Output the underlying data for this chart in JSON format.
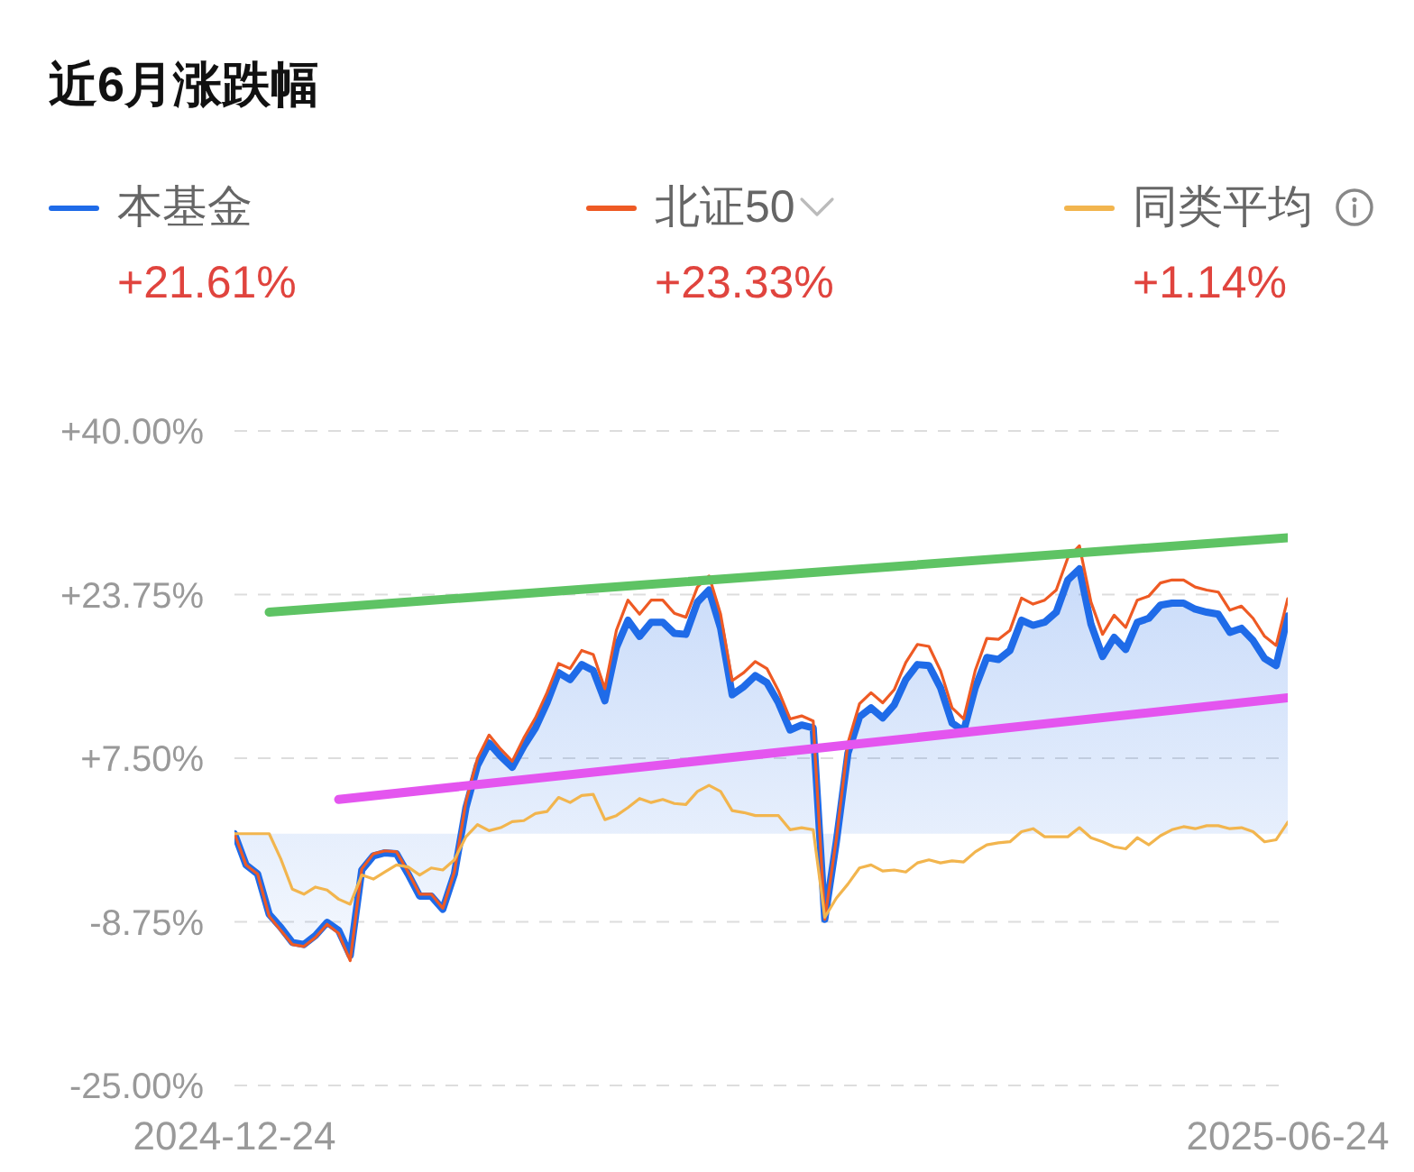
{
  "chart_data": {
    "type": "line",
    "title": "近6月涨跌幅",
    "x": [
      "2024-12-24",
      "2024-12-26",
      "2024-12-28",
      "2024-12-30",
      "2025-01-01",
      "2025-01-03",
      "2025-01-05",
      "2025-01-07",
      "2025-01-09",
      "2025-01-11",
      "2025-01-13",
      "2025-01-15",
      "2025-01-17",
      "2025-01-19",
      "2025-01-21",
      "2025-01-23",
      "2025-01-25",
      "2025-01-27",
      "2025-01-29",
      "2025-01-31",
      "2025-02-02",
      "2025-02-04",
      "2025-02-06",
      "2025-02-08",
      "2025-02-10",
      "2025-02-12",
      "2025-02-14",
      "2025-02-16",
      "2025-02-18",
      "2025-02-20",
      "2025-02-22",
      "2025-02-24",
      "2025-02-26",
      "2025-02-28",
      "2025-03-02",
      "2025-03-04",
      "2025-03-06",
      "2025-03-08",
      "2025-03-10",
      "2025-03-12",
      "2025-03-14",
      "2025-03-16",
      "2025-03-18",
      "2025-03-20",
      "2025-03-22",
      "2025-03-24",
      "2025-03-26",
      "2025-03-28",
      "2025-03-30",
      "2025-04-01",
      "2025-04-03",
      "2025-04-05",
      "2025-04-07",
      "2025-04-09",
      "2025-04-11",
      "2025-04-13",
      "2025-04-15",
      "2025-04-17",
      "2025-04-19",
      "2025-04-21",
      "2025-04-23",
      "2025-04-25",
      "2025-04-27",
      "2025-04-29",
      "2025-05-01",
      "2025-05-03",
      "2025-05-05",
      "2025-05-07",
      "2025-05-09",
      "2025-05-11",
      "2025-05-13",
      "2025-05-15",
      "2025-05-17",
      "2025-05-19",
      "2025-05-21",
      "2025-05-23",
      "2025-05-25",
      "2025-05-27",
      "2025-05-29",
      "2025-05-31",
      "2025-06-02",
      "2025-06-04",
      "2025-06-06",
      "2025-06-08",
      "2025-06-10",
      "2025-06-12",
      "2025-06-14",
      "2025-06-16",
      "2025-06-18",
      "2025-06-20",
      "2025-06-22",
      "2025-06-24"
    ],
    "xlim": [
      "2024-12-24",
      "2025-06-24"
    ],
    "xticks": [
      "2024-12-24",
      "2025-06-24"
    ],
    "ylim": [
      -25,
      40
    ],
    "yticks": [
      {
        "value": 40,
        "label": "+40.00%"
      },
      {
        "value": 23.75,
        "label": "+23.75%"
      },
      {
        "value": 7.5,
        "label": "+7.50%"
      },
      {
        "value": -8.75,
        "label": "-8.75%"
      },
      {
        "value": -25,
        "label": "-25.00%"
      }
    ],
    "grid": "y",
    "legend": "top",
    "marker": "none",
    "line_style": "solid",
    "annotations": [
      "+21.61%",
      "+23.33%",
      "+1.14%"
    ],
    "series": [
      {
        "name": "本基金",
        "type": "area",
        "color": "#1f6be8",
        "values": [
          0,
          -3.1,
          -4.0,
          -8.0,
          -9.3,
          -10.8,
          -11.0,
          -10.1,
          -8.8,
          -9.6,
          -12.1,
          -3.6,
          -2.2,
          -1.9,
          -2.0,
          -4.0,
          -6.2,
          -6.2,
          -7.5,
          -4.0,
          2.6,
          6.8,
          9.0,
          7.7,
          6.6,
          8.7,
          10.5,
          13.0,
          16.0,
          15.3,
          16.8,
          16.2,
          13.2,
          18.5,
          21.2,
          19.6,
          21.0,
          21.0,
          19.9,
          19.8,
          23.0,
          24.2,
          20.4,
          13.8,
          14.6,
          15.7,
          15.0,
          13.0,
          10.3,
          10.8,
          10.5,
          -8.5,
          -0.8,
          8.0,
          11.6,
          12.5,
          11.5,
          12.8,
          15.3,
          16.8,
          16.7,
          14.5,
          11.0,
          10.2,
          14.5,
          17.5,
          17.3,
          18.2,
          21.2,
          20.7,
          21.0,
          22.0,
          25.2,
          26.3,
          20.8,
          17.6,
          19.5,
          18.3,
          21.0,
          21.4,
          22.7,
          22.9,
          22.9,
          22.3,
          22.0,
          21.8,
          20.0,
          20.4,
          19.2,
          17.4,
          16.7,
          21.61
        ]
      },
      {
        "name": "北证50",
        "color": "#ee5a24",
        "values": [
          0,
          -3.1,
          -4.0,
          -8.2,
          -9.6,
          -11.0,
          -11.2,
          -10.3,
          -9.0,
          -9.9,
          -12.6,
          -3.5,
          -2.0,
          -1.7,
          -1.8,
          -3.8,
          -6.0,
          -6.0,
          -7.4,
          -3.8,
          3.2,
          7.5,
          9.8,
          8.4,
          7.2,
          9.5,
          11.5,
          14.0,
          16.9,
          16.4,
          18.2,
          17.8,
          14.4,
          20.2,
          23.2,
          21.8,
          23.2,
          23.2,
          21.9,
          21.5,
          24.5,
          25.6,
          21.8,
          15.2,
          16.0,
          17.1,
          16.4,
          14.2,
          11.4,
          11.7,
          11.2,
          -8.5,
          -0.5,
          9.0,
          12.9,
          14.0,
          13.0,
          14.3,
          17.0,
          18.8,
          18.6,
          16.2,
          12.5,
          11.4,
          16.2,
          19.4,
          19.3,
          20.2,
          23.4,
          22.8,
          23.2,
          24.2,
          27.4,
          28.6,
          23.0,
          19.8,
          21.7,
          20.5,
          23.2,
          23.6,
          24.9,
          25.2,
          25.2,
          24.5,
          24.2,
          24.0,
          22.2,
          22.6,
          21.4,
          19.6,
          18.7,
          23.33
        ]
      },
      {
        "name": "同类平均",
        "color": "#f2b54e",
        "values": [
          0,
          0.0,
          0.0,
          0.0,
          -2.5,
          -5.5,
          -6.0,
          -5.3,
          -5.6,
          -6.5,
          -7.0,
          -4.1,
          -4.5,
          -3.8,
          -3.1,
          -3.3,
          -4.1,
          -3.4,
          -3.6,
          -2.6,
          -0.3,
          0.9,
          0.3,
          0.6,
          1.2,
          1.3,
          2.0,
          2.2,
          3.6,
          3.1,
          3.8,
          3.9,
          1.4,
          1.8,
          2.6,
          3.5,
          3.1,
          3.4,
          3.0,
          2.9,
          4.2,
          4.8,
          4.2,
          2.3,
          2.1,
          1.8,
          1.8,
          1.8,
          0.4,
          0.6,
          0.4,
          -8.3,
          -6.4,
          -5.0,
          -3.4,
          -3.1,
          -3.7,
          -3.6,
          -3.8,
          -2.9,
          -2.6,
          -2.9,
          -2.7,
          -2.8,
          -1.8,
          -1.1,
          -0.9,
          -0.8,
          0.2,
          0.5,
          -0.3,
          -0.3,
          -0.3,
          0.6,
          -0.4,
          -0.8,
          -1.3,
          -1.5,
          -0.4,
          -1.1,
          -0.2,
          0.4,
          0.7,
          0.5,
          0.8,
          0.8,
          0.5,
          0.6,
          0.2,
          -0.8,
          -0.6,
          1.14
        ]
      },
      {
        "color": "#5ec364",
        "x": [
          "2024-12-30",
          "2025-06-24"
        ],
        "values": [
          22.0,
          29.4
        ]
      },
      {
        "color": "#e455ef",
        "x": [
          "2025-01-11",
          "2025-06-24"
        ],
        "values": [
          3.4,
          13.5
        ]
      }
    ]
  }
}
